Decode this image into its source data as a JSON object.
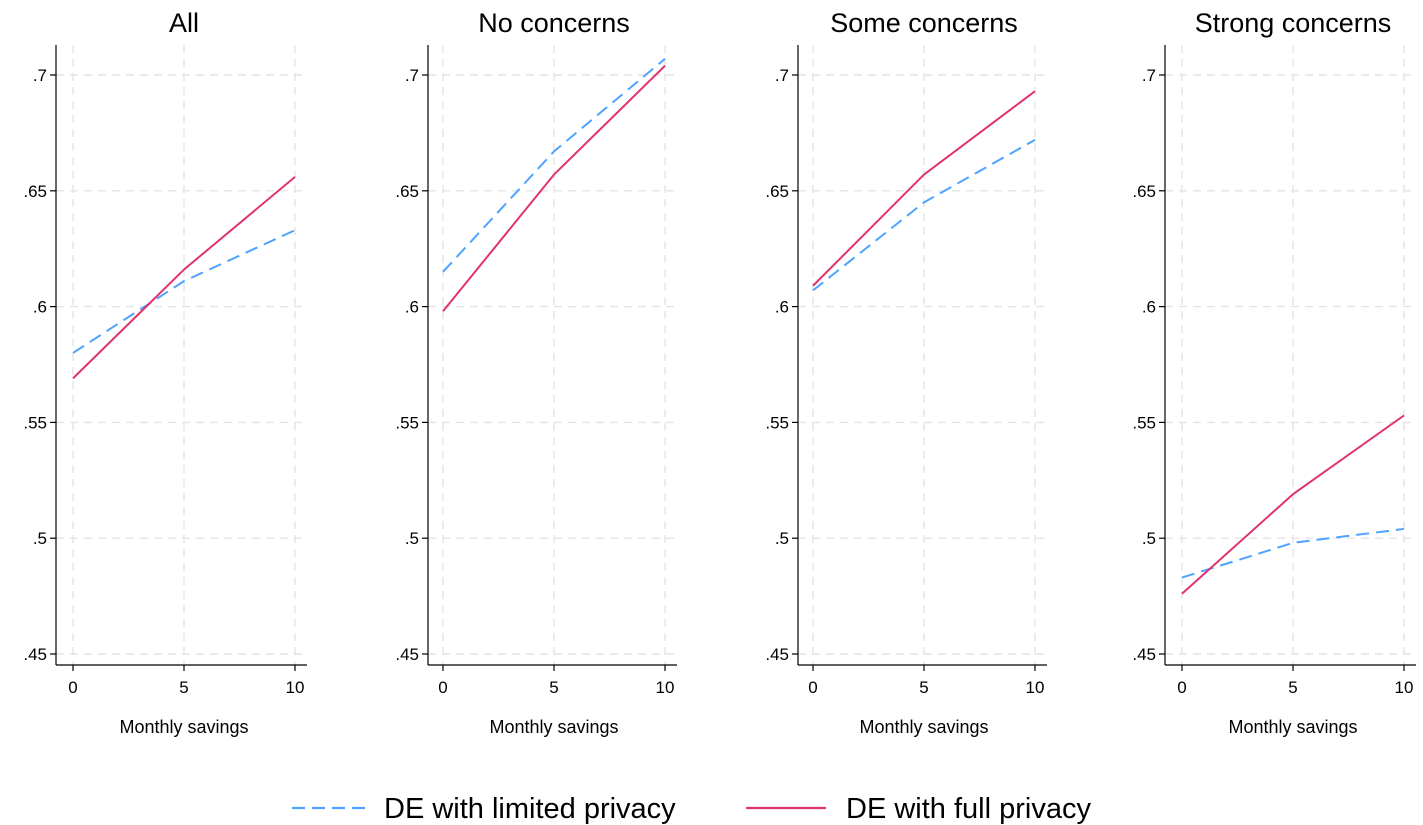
{
  "chart_data": [
    {
      "type": "line",
      "title": "All",
      "xlabel": "Monthly savings",
      "ylabel": "",
      "x": [
        0,
        5,
        10
      ],
      "xticks": [
        "0",
        "5",
        "10"
      ],
      "yticks": [
        ".45",
        ".5",
        ".55",
        ".6",
        ".65",
        ".7"
      ],
      "ylim": [
        0.45,
        0.7
      ],
      "grid": true,
      "series": [
        {
          "name": "DE with limited privacy",
          "values": [
            0.58,
            0.611,
            0.633
          ],
          "color": "#4da3ff",
          "style": "dashed"
        },
        {
          "name": "DE with full privacy",
          "values": [
            0.569,
            0.616,
            0.656
          ],
          "color": "#e0336e",
          "style": "solid"
        }
      ]
    },
    {
      "type": "line",
      "title": "No concerns",
      "xlabel": "Monthly savings",
      "ylabel": "",
      "x": [
        0,
        5,
        10
      ],
      "xticks": [
        "0",
        "5",
        "10"
      ],
      "yticks": [
        ".45",
        ".5",
        ".55",
        ".6",
        ".65",
        ".7"
      ],
      "ylim": [
        0.45,
        0.7
      ],
      "grid": true,
      "series": [
        {
          "name": "DE with limited privacy",
          "values": [
            0.615,
            0.667,
            0.707
          ],
          "color": "#4da3ff",
          "style": "dashed"
        },
        {
          "name": "DE with full privacy",
          "values": [
            0.598,
            0.657,
            0.704
          ],
          "color": "#e0336e",
          "style": "solid"
        }
      ]
    },
    {
      "type": "line",
      "title": "Some concerns",
      "xlabel": "Monthly savings",
      "ylabel": "",
      "x": [
        0,
        5,
        10
      ],
      "xticks": [
        "0",
        "5",
        "10"
      ],
      "yticks": [
        ".45",
        ".5",
        ".55",
        ".6",
        ".65",
        ".7"
      ],
      "ylim": [
        0.45,
        0.7
      ],
      "grid": true,
      "series": [
        {
          "name": "DE with limited privacy",
          "values": [
            0.607,
            0.645,
            0.672
          ],
          "color": "#4da3ff",
          "style": "dashed"
        },
        {
          "name": "DE with full privacy",
          "values": [
            0.609,
            0.657,
            0.693
          ],
          "color": "#e0336e",
          "style": "solid"
        }
      ]
    },
    {
      "type": "line",
      "title": "Strong concerns",
      "xlabel": "Monthly savings",
      "ylabel": "",
      "x": [
        0,
        5,
        10
      ],
      "xticks": [
        "0",
        "5",
        "10"
      ],
      "yticks": [
        ".45",
        ".5",
        ".55",
        ".6",
        ".65",
        ".7"
      ],
      "ylim": [
        0.45,
        0.7
      ],
      "grid": true,
      "series": [
        {
          "name": "DE with limited privacy",
          "values": [
            0.483,
            0.498,
            0.504
          ],
          "color": "#4da3ff",
          "style": "dashed"
        },
        {
          "name": "DE with full privacy",
          "values": [
            0.476,
            0.519,
            0.553
          ],
          "color": "#e0336e",
          "style": "solid"
        }
      ]
    }
  ],
  "legend": {
    "placement": "bottom",
    "items": [
      {
        "label": "DE with limited privacy",
        "color": "#4da3ff",
        "style": "dashed"
      },
      {
        "label": "DE with full privacy",
        "color": "#e0336e",
        "style": "solid"
      }
    ]
  }
}
